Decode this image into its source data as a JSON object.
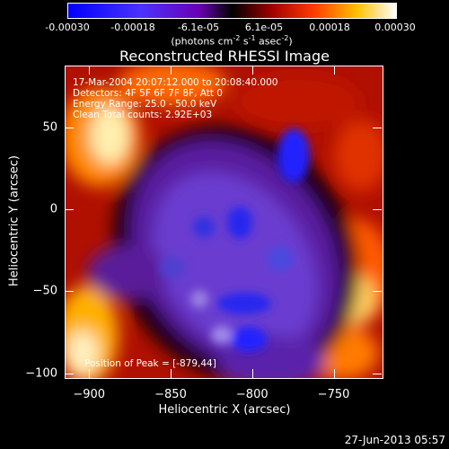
{
  "chart_data": {
    "type": "heatmap",
    "title": "Reconstructed RHESSI Image",
    "xlabel": "Heliocentric X (arcsec)",
    "ylabel": "Heliocentric Y (arcsec)",
    "xlim": [
      -915,
      -720
    ],
    "ylim": [
      -103,
      88
    ],
    "xticks": [
      -900,
      -850,
      -800,
      -750
    ],
    "yticks": [
      -100,
      -50,
      0,
      50
    ],
    "colorbar": {
      "ticks": [
        "-0.00030",
        "-0.00018",
        "-6.1e-05",
        "6.1e-05",
        "0.00018",
        "0.00030"
      ],
      "unit_prefix": "(photons cm",
      "unit_exp1": "-2",
      "unit_mid": " s",
      "unit_exp2": "-1",
      "unit_mid2": " asec",
      "unit_exp3": "-2",
      "unit_suffix": ")",
      "range": [
        -0.0003,
        0.0003
      ]
    },
    "annotations": [
      "17-Mar-2004 20:07:12.000 to 20:08:40.000",
      "Detectors: 4F 5F 6F 7F 8F, Att 0",
      "Energy Range: 25.0 - 50.0 keV",
      "Clean   Total counts: 2.92E+03"
    ],
    "peak_label": "Position of Peak = [-879,44]",
    "peak": {
      "x": -879,
      "y": 44
    }
  },
  "timestamp": "27-Jun-2013 05:57"
}
